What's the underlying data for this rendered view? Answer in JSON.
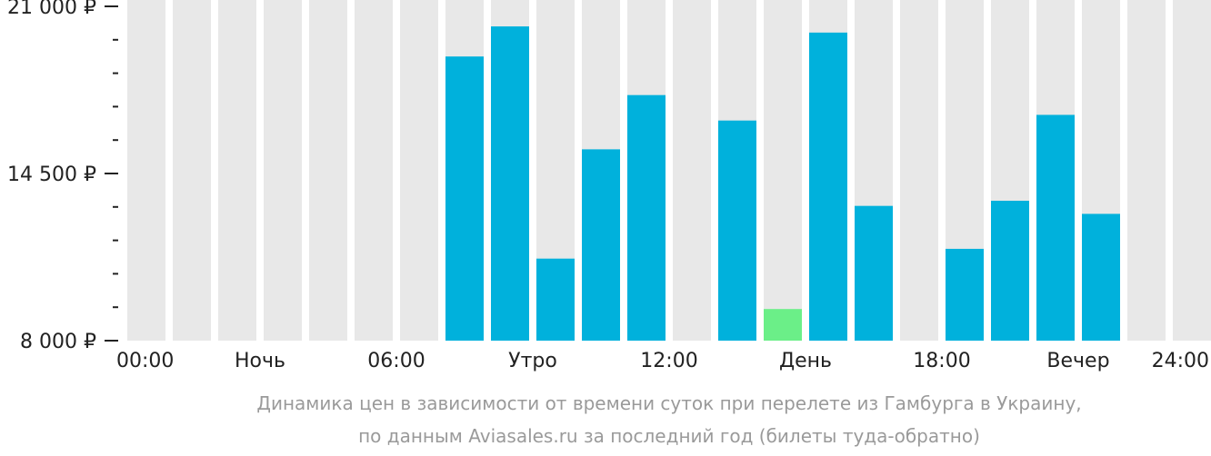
{
  "chart_data": {
    "type": "bar",
    "title": "",
    "xlabel": "",
    "ylabel": "",
    "ylim": [
      8000,
      21000
    ],
    "categories": [
      "00",
      "01",
      "02",
      "03",
      "04",
      "05",
      "06",
      "07",
      "08",
      "09",
      "10",
      "11",
      "12",
      "13",
      "14",
      "15",
      "16",
      "17",
      "18",
      "19",
      "20",
      "21",
      "22",
      "23"
    ],
    "values": [
      null,
      null,
      null,
      null,
      null,
      null,
      null,
      19050,
      20220,
      11190,
      15440,
      17550,
      null,
      16560,
      9230,
      19980,
      13240,
      null,
      11570,
      13440,
      16780,
      12930,
      null,
      null
    ],
    "highlight_index": 14,
    "y_ticks": [
      8000,
      14500,
      21000
    ],
    "y_tick_labels": [
      "8 000 ₽",
      "14 500 ₽",
      "21 000 ₽"
    ],
    "y_minor_per_interval": 4,
    "x_ticks": [
      {
        "at": 0,
        "label": "00:00"
      },
      {
        "at": 3,
        "label": "Ночь"
      },
      {
        "at": 6,
        "label": "06:00"
      },
      {
        "at": 9,
        "label": "Утро"
      },
      {
        "at": 12,
        "label": "12:00"
      },
      {
        "at": 15,
        "label": "День"
      },
      {
        "at": 18,
        "label": "18:00"
      },
      {
        "at": 21,
        "label": "Вечер"
      },
      {
        "at": 24,
        "label": "24:00"
      }
    ],
    "colors": {
      "bar": "#00b1dc",
      "highlight": "#6bef88",
      "background_bar": "#e8e8e8",
      "axis": "#222222"
    }
  },
  "caption": {
    "line1": "Динамика цен в зависимости от времени суток при перелете из Гамбурга в Украину,",
    "line2": "по данным Aviasales.ru за последний год (билеты туда-обратно)"
  }
}
